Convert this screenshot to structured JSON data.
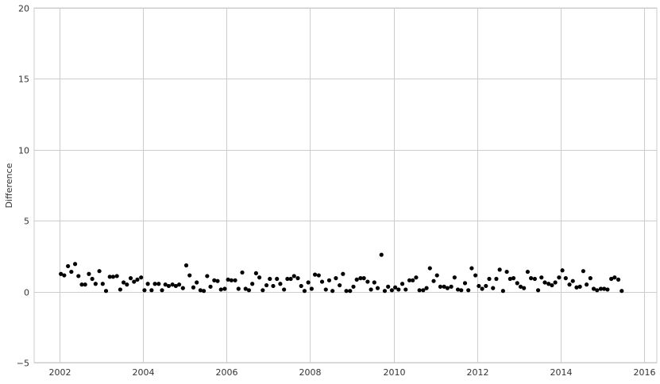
{
  "chart_data": {
    "type": "scatter",
    "title": "",
    "xlabel": "",
    "ylabel": "Difference",
    "xlim": [
      2001.4,
      2016.3
    ],
    "ylim": [
      -5,
      20
    ],
    "x_ticks": [
      2002,
      2004,
      2006,
      2008,
      2010,
      2012,
      2014,
      2016
    ],
    "x_tick_labels": [
      "2002",
      "2004",
      "2006",
      "2008",
      "2010",
      "2012",
      "2014",
      "2016"
    ],
    "y_ticks": [
      -5,
      0,
      5,
      10,
      15,
      20
    ],
    "y_tick_labels": [
      "−5",
      "0",
      "5",
      "10",
      "15",
      "20"
    ],
    "grid": true,
    "legend": "none",
    "marker_color": "#000000",
    "grid_color": "#cccccc",
    "series": [
      {
        "points": [
          [
            2002.04,
            1.25
          ],
          [
            2002.12,
            1.15
          ],
          [
            2002.21,
            1.8
          ],
          [
            2002.29,
            1.4
          ],
          [
            2002.38,
            1.95
          ],
          [
            2002.46,
            1.1
          ],
          [
            2002.54,
            0.5
          ],
          [
            2002.62,
            0.5
          ],
          [
            2002.71,
            1.25
          ],
          [
            2002.79,
            0.9
          ],
          [
            2002.87,
            0.55
          ],
          [
            2002.96,
            1.45
          ],
          [
            2003.04,
            0.55
          ],
          [
            2003.12,
            0.05
          ],
          [
            2003.21,
            1.05
          ],
          [
            2003.29,
            1.05
          ],
          [
            2003.38,
            1.1
          ],
          [
            2003.46,
            0.15
          ],
          [
            2003.54,
            0.65
          ],
          [
            2003.62,
            0.5
          ],
          [
            2003.71,
            0.95
          ],
          [
            2003.79,
            0.7
          ],
          [
            2003.87,
            0.85
          ],
          [
            2003.96,
            1.0
          ],
          [
            2004.04,
            0.1
          ],
          [
            2004.12,
            0.55
          ],
          [
            2004.21,
            0.1
          ],
          [
            2004.29,
            0.55
          ],
          [
            2004.38,
            0.55
          ],
          [
            2004.46,
            0.1
          ],
          [
            2004.54,
            0.5
          ],
          [
            2004.62,
            0.4
          ],
          [
            2004.71,
            0.5
          ],
          [
            2004.79,
            0.4
          ],
          [
            2004.87,
            0.5
          ],
          [
            2004.96,
            0.25
          ],
          [
            2005.04,
            1.85
          ],
          [
            2005.12,
            1.15
          ],
          [
            2005.21,
            0.3
          ],
          [
            2005.29,
            0.65
          ],
          [
            2005.38,
            0.1
          ],
          [
            2005.46,
            0.05
          ],
          [
            2005.54,
            1.1
          ],
          [
            2005.62,
            0.35
          ],
          [
            2005.71,
            0.8
          ],
          [
            2005.79,
            0.75
          ],
          [
            2005.87,
            0.15
          ],
          [
            2005.96,
            0.2
          ],
          [
            2006.04,
            0.85
          ],
          [
            2006.12,
            0.8
          ],
          [
            2006.21,
            0.8
          ],
          [
            2006.29,
            0.2
          ],
          [
            2006.38,
            1.35
          ],
          [
            2006.46,
            0.2
          ],
          [
            2006.54,
            0.1
          ],
          [
            2006.62,
            0.55
          ],
          [
            2006.71,
            1.3
          ],
          [
            2006.79,
            1.0
          ],
          [
            2006.87,
            0.1
          ],
          [
            2006.96,
            0.45
          ],
          [
            2007.04,
            0.9
          ],
          [
            2007.12,
            0.4
          ],
          [
            2007.21,
            0.9
          ],
          [
            2007.29,
            0.55
          ],
          [
            2007.38,
            0.15
          ],
          [
            2007.46,
            0.9
          ],
          [
            2007.54,
            0.9
          ],
          [
            2007.62,
            1.1
          ],
          [
            2007.71,
            0.95
          ],
          [
            2007.79,
            0.4
          ],
          [
            2007.87,
            0.05
          ],
          [
            2007.96,
            0.65
          ],
          [
            2008.04,
            0.2
          ],
          [
            2008.12,
            1.2
          ],
          [
            2008.21,
            1.15
          ],
          [
            2008.29,
            0.7
          ],
          [
            2008.38,
            0.15
          ],
          [
            2008.46,
            0.8
          ],
          [
            2008.54,
            0.05
          ],
          [
            2008.62,
            0.95
          ],
          [
            2008.71,
            0.45
          ],
          [
            2008.79,
            1.25
          ],
          [
            2008.87,
            0.05
          ],
          [
            2008.96,
            0.05
          ],
          [
            2009.04,
            0.35
          ],
          [
            2009.12,
            0.85
          ],
          [
            2009.21,
            0.95
          ],
          [
            2009.29,
            0.95
          ],
          [
            2009.38,
            0.7
          ],
          [
            2009.46,
            0.15
          ],
          [
            2009.54,
            0.65
          ],
          [
            2009.62,
            0.25
          ],
          [
            2009.71,
            2.6
          ],
          [
            2009.79,
            0.05
          ],
          [
            2009.87,
            0.35
          ],
          [
            2009.96,
            0.1
          ],
          [
            2010.04,
            0.3
          ],
          [
            2010.12,
            0.15
          ],
          [
            2010.21,
            0.55
          ],
          [
            2010.29,
            0.15
          ],
          [
            2010.38,
            0.8
          ],
          [
            2010.46,
            0.8
          ],
          [
            2010.54,
            1.0
          ],
          [
            2010.62,
            0.1
          ],
          [
            2010.71,
            0.1
          ],
          [
            2010.79,
            0.25
          ],
          [
            2010.87,
            1.65
          ],
          [
            2010.96,
            0.75
          ],
          [
            2011.04,
            1.15
          ],
          [
            2011.12,
            0.35
          ],
          [
            2011.21,
            0.35
          ],
          [
            2011.29,
            0.25
          ],
          [
            2011.38,
            0.35
          ],
          [
            2011.46,
            1.0
          ],
          [
            2011.54,
            0.15
          ],
          [
            2011.62,
            0.1
          ],
          [
            2011.71,
            0.6
          ],
          [
            2011.79,
            0.1
          ],
          [
            2011.87,
            1.65
          ],
          [
            2011.96,
            1.15
          ],
          [
            2012.04,
            0.4
          ],
          [
            2012.12,
            0.2
          ],
          [
            2012.21,
            0.4
          ],
          [
            2012.29,
            0.9
          ],
          [
            2012.38,
            0.25
          ],
          [
            2012.46,
            0.9
          ],
          [
            2012.54,
            1.55
          ],
          [
            2012.62,
            0.05
          ],
          [
            2012.71,
            1.4
          ],
          [
            2012.79,
            0.9
          ],
          [
            2012.87,
            0.95
          ],
          [
            2012.96,
            0.6
          ],
          [
            2013.04,
            0.35
          ],
          [
            2013.12,
            0.25
          ],
          [
            2013.21,
            1.4
          ],
          [
            2013.29,
            0.95
          ],
          [
            2013.38,
            0.9
          ],
          [
            2013.46,
            0.1
          ],
          [
            2013.54,
            1.0
          ],
          [
            2013.62,
            0.65
          ],
          [
            2013.71,
            0.55
          ],
          [
            2013.79,
            0.45
          ],
          [
            2013.87,
            0.65
          ],
          [
            2013.96,
            1.0
          ],
          [
            2014.04,
            1.5
          ],
          [
            2014.12,
            0.95
          ],
          [
            2014.21,
            0.5
          ],
          [
            2014.29,
            0.75
          ],
          [
            2014.38,
            0.3
          ],
          [
            2014.46,
            0.35
          ],
          [
            2014.54,
            1.45
          ],
          [
            2014.62,
            0.5
          ],
          [
            2014.71,
            0.95
          ],
          [
            2014.79,
            0.2
          ],
          [
            2014.87,
            0.1
          ],
          [
            2014.96,
            0.2
          ],
          [
            2015.04,
            0.2
          ],
          [
            2015.12,
            0.15
          ],
          [
            2015.21,
            0.9
          ],
          [
            2015.29,
            1.0
          ],
          [
            2015.38,
            0.85
          ],
          [
            2015.46,
            0.05
          ]
        ]
      }
    ]
  }
}
